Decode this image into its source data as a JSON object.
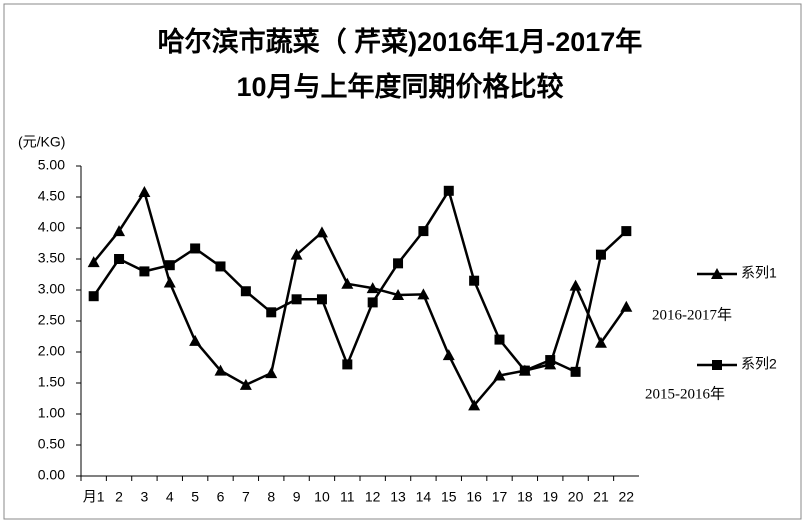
{
  "chart_data": {
    "type": "line",
    "title": "哈尔滨市蔬菜（ 芹菜)2016年1月-2017年",
    "subtitle": "10月与上年度同期价格比较",
    "y_label": "(元/KG)",
    "categories": [
      "月1",
      "2",
      "3",
      "4",
      "5",
      "6",
      "7",
      "8",
      "9",
      "10",
      "11",
      "12",
      "13",
      "14",
      "15",
      "16",
      "17",
      "18",
      "19",
      "20",
      "21",
      "22"
    ],
    "series": [
      {
        "name": "系列1",
        "color": "#000000",
        "marker": "triangle",
        "annotation": "2016-2017年",
        "values": [
          3.45,
          3.95,
          4.58,
          3.12,
          2.18,
          1.7,
          1.47,
          1.66,
          3.57,
          3.93,
          3.1,
          3.03,
          2.92,
          2.93,
          1.95,
          1.14,
          1.62,
          1.7,
          1.8,
          3.07,
          2.15,
          2.73
        ]
      },
      {
        "name": "系列2",
        "color": "#000000",
        "marker": "square",
        "annotation": "2015-2016年",
        "values": [
          2.9,
          3.5,
          3.3,
          3.4,
          3.67,
          3.38,
          2.98,
          2.64,
          2.85,
          2.85,
          1.8,
          2.8,
          3.43,
          3.95,
          4.6,
          3.15,
          2.2,
          1.7,
          1.87,
          1.68,
          3.57,
          3.95
        ]
      }
    ],
    "ylim": [
      0,
      5
    ],
    "yticks": [
      {
        "value": 0,
        "label": "0.00"
      },
      {
        "value": 0.5,
        "label": "0.50"
      },
      {
        "value": 1,
        "label": "1.00"
      },
      {
        "value": 1.5,
        "label": "1.50"
      },
      {
        "value": 2,
        "label": "2.00"
      },
      {
        "value": 2.5,
        "label": "2.50"
      },
      {
        "value": 3,
        "label": "3.00"
      },
      {
        "value": 3.5,
        "label": "3.50"
      },
      {
        "value": 4,
        "label": "4.00"
      },
      {
        "value": 4.5,
        "label": "4.50"
      },
      {
        "value": 5,
        "label": "5.00"
      }
    ],
    "grid": false,
    "legend": "right"
  }
}
